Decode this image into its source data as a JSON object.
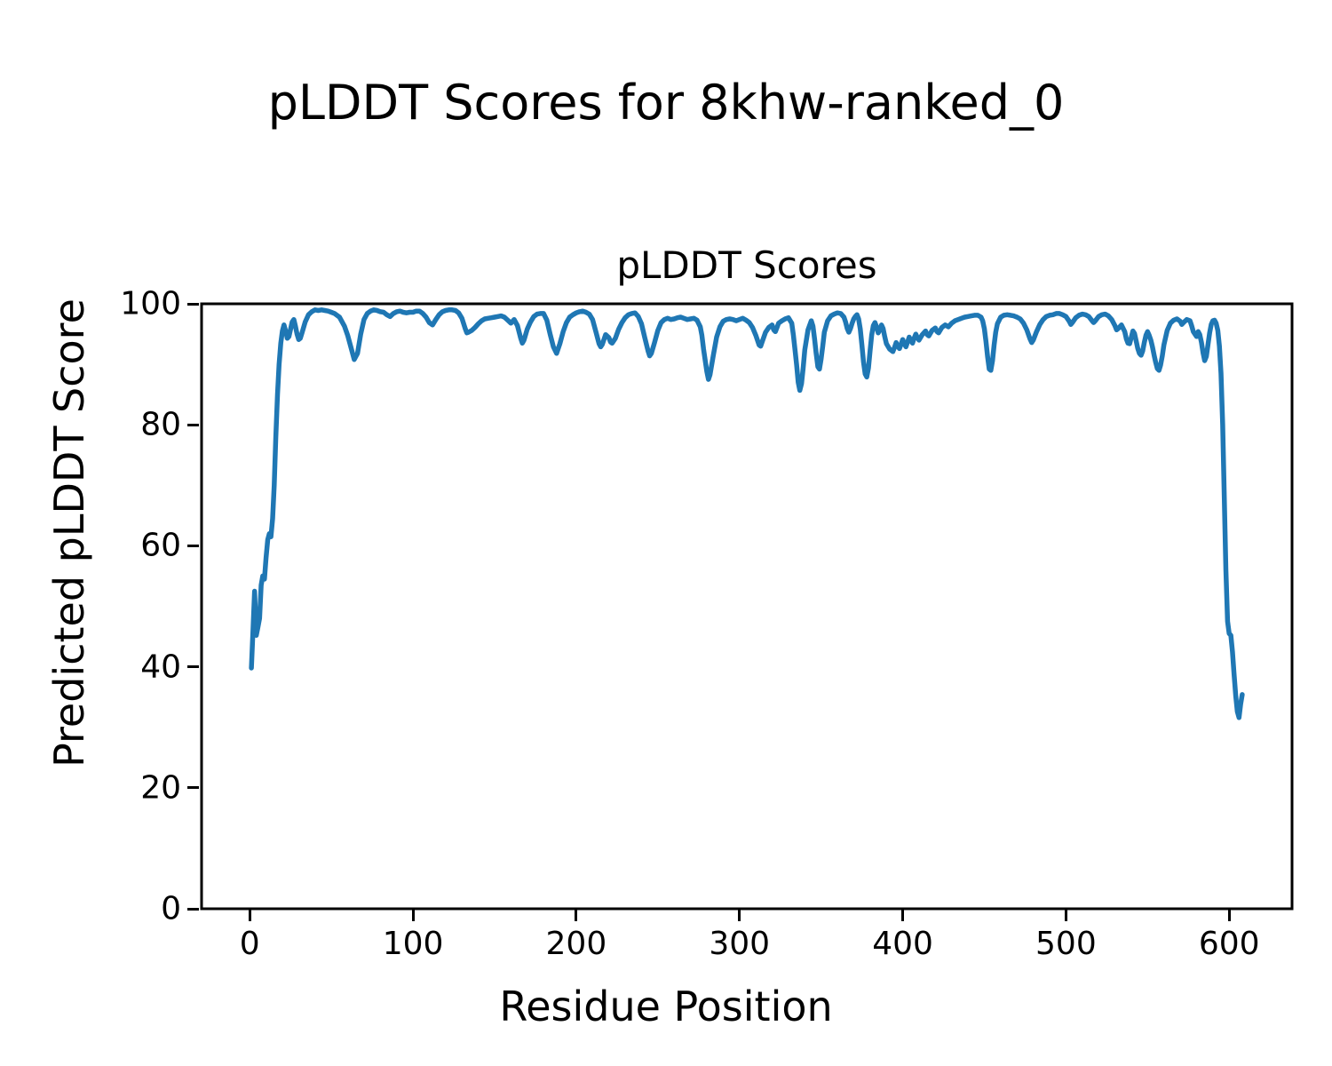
{
  "figure": {
    "background_color": "#ffffff",
    "text_color": "#000000"
  },
  "chart_data": {
    "type": "line",
    "suptitle": "pLDDT Scores for 8khw-ranked_0",
    "title": "pLDDT Scores",
    "xlabel": "Residue Position",
    "ylabel": "Predicted pLDDT Score",
    "line_color": "#1f77b4",
    "grid": false,
    "legend": null,
    "xlim": [
      -29.5,
      638.5
    ],
    "ylim": [
      0,
      100
    ],
    "xticks": [
      0,
      100,
      200,
      300,
      400,
      500,
      600
    ],
    "yticks": [
      0,
      20,
      40,
      60,
      80,
      100
    ],
    "series_name": "pLDDT score per residue",
    "points": [
      [
        1,
        39.8
      ],
      [
        2,
        46
      ],
      [
        3,
        52.5
      ],
      [
        4,
        45.2
      ],
      [
        5,
        46.5
      ],
      [
        6,
        48
      ],
      [
        7,
        53.5
      ],
      [
        8,
        55
      ],
      [
        9,
        54.5
      ],
      [
        10,
        58
      ],
      [
        11,
        61
      ],
      [
        12,
        62
      ],
      [
        13,
        61.5
      ],
      [
        14,
        64.5
      ],
      [
        15,
        70
      ],
      [
        16,
        78
      ],
      [
        17,
        85
      ],
      [
        18,
        90
      ],
      [
        19,
        93.5
      ],
      [
        20,
        95.5
      ],
      [
        21,
        96.5
      ],
      [
        22,
        95.5
      ],
      [
        23,
        94.3
      ],
      [
        24,
        94.6
      ],
      [
        25,
        95.8
      ],
      [
        26,
        97
      ],
      [
        27,
        97.4
      ],
      [
        28,
        96.3
      ],
      [
        29,
        95
      ],
      [
        30,
        94.1
      ],
      [
        31,
        94.3
      ],
      [
        32,
        95.2
      ],
      [
        34,
        97
      ],
      [
        36,
        98.2
      ],
      [
        38,
        98.7
      ],
      [
        40,
        99
      ],
      [
        42,
        98.9
      ],
      [
        44,
        99
      ],
      [
        46,
        98.9
      ],
      [
        48,
        98.8
      ],
      [
        50,
        98.6
      ],
      [
        52,
        98.4
      ],
      [
        55,
        97.8
      ],
      [
        58,
        96.3
      ],
      [
        60,
        94.8
      ],
      [
        62,
        92.8
      ],
      [
        64,
        90.8
      ],
      [
        66,
        91.8
      ],
      [
        68,
        95
      ],
      [
        70,
        97.4
      ],
      [
        72,
        98.4
      ],
      [
        74,
        98.8
      ],
      [
        76,
        99
      ],
      [
        78,
        98.9
      ],
      [
        80,
        98.7
      ],
      [
        82,
        98.6
      ],
      [
        84,
        98.2
      ],
      [
        86,
        97.9
      ],
      [
        88,
        98.4
      ],
      [
        90,
        98.7
      ],
      [
        92,
        98.8
      ],
      [
        94,
        98.6
      ],
      [
        96,
        98.5
      ],
      [
        98,
        98.6
      ],
      [
        100,
        98.6
      ],
      [
        102,
        98.8
      ],
      [
        104,
        98.8
      ],
      [
        106,
        98.4
      ],
      [
        108,
        97.8
      ],
      [
        110,
        96.9
      ],
      [
        112,
        96.5
      ],
      [
        114,
        97.4
      ],
      [
        116,
        98.2
      ],
      [
        118,
        98.7
      ],
      [
        120,
        98.9
      ],
      [
        122,
        99
      ],
      [
        124,
        99
      ],
      [
        126,
        98.9
      ],
      [
        128,
        98.5
      ],
      [
        130,
        97.6
      ],
      [
        132,
        95.9
      ],
      [
        133,
        95.2
      ],
      [
        134,
        95.3
      ],
      [
        136,
        95.6
      ],
      [
        138,
        96.1
      ],
      [
        140,
        96.7
      ],
      [
        142,
        97.2
      ],
      [
        144,
        97.5
      ],
      [
        146,
        97.6
      ],
      [
        148,
        97.7
      ],
      [
        150,
        97.8
      ],
      [
        152,
        97.9
      ],
      [
        154,
        98
      ],
      [
        156,
        97.8
      ],
      [
        158,
        97.3
      ],
      [
        160,
        96.8
      ],
      [
        162,
        97.4
      ],
      [
        164,
        96.4
      ],
      [
        166,
        94.3
      ],
      [
        167,
        93.5
      ],
      [
        168,
        94
      ],
      [
        170,
        95.8
      ],
      [
        172,
        97
      ],
      [
        174,
        97.9
      ],
      [
        176,
        98.3
      ],
      [
        178,
        98.4
      ],
      [
        180,
        98.4
      ],
      [
        182,
        97.3
      ],
      [
        184,
        95
      ],
      [
        186,
        92.9
      ],
      [
        188,
        91.8
      ],
      [
        190,
        93.4
      ],
      [
        192,
        95.4
      ],
      [
        194,
        96.9
      ],
      [
        196,
        97.8
      ],
      [
        198,
        98.2
      ],
      [
        200,
        98.5
      ],
      [
        202,
        98.7
      ],
      [
        204,
        98.8
      ],
      [
        206,
        98.6
      ],
      [
        208,
        98.3
      ],
      [
        210,
        97.4
      ],
      [
        212,
        95.4
      ],
      [
        214,
        93.4
      ],
      [
        215,
        92.9
      ],
      [
        216,
        93.3
      ],
      [
        218,
        94.9
      ],
      [
        220,
        94.4
      ],
      [
        221,
        93.7
      ],
      [
        222,
        93.5
      ],
      [
        224,
        94.3
      ],
      [
        226,
        95.8
      ],
      [
        228,
        96.9
      ],
      [
        230,
        97.7
      ],
      [
        232,
        98.2
      ],
      [
        234,
        98.4
      ],
      [
        236,
        98.5
      ],
      [
        238,
        97.9
      ],
      [
        240,
        96.7
      ],
      [
        242,
        94.4
      ],
      [
        244,
        92.2
      ],
      [
        245,
        91.4
      ],
      [
        246,
        91.8
      ],
      [
        248,
        93.6
      ],
      [
        250,
        95.6
      ],
      [
        252,
        96.9
      ],
      [
        254,
        97.4
      ],
      [
        256,
        97.6
      ],
      [
        258,
        97.4
      ],
      [
        260,
        97.5
      ],
      [
        262,
        97.7
      ],
      [
        264,
        97.8
      ],
      [
        266,
        97.6
      ],
      [
        268,
        97.4
      ],
      [
        270,
        97.5
      ],
      [
        272,
        97.6
      ],
      [
        274,
        97.3
      ],
      [
        276,
        96.2
      ],
      [
        277,
        94.8
      ],
      [
        278,
        92.5
      ],
      [
        280,
        88.8
      ],
      [
        281,
        87.5
      ],
      [
        282,
        88.3
      ],
      [
        284,
        91.5
      ],
      [
        286,
        94.5
      ],
      [
        288,
        96.2
      ],
      [
        290,
        97.1
      ],
      [
        292,
        97.4
      ],
      [
        294,
        97.5
      ],
      [
        296,
        97.4
      ],
      [
        298,
        97.2
      ],
      [
        300,
        97.4
      ],
      [
        302,
        97.6
      ],
      [
        304,
        97.3
      ],
      [
        306,
        96.9
      ],
      [
        308,
        96.1
      ],
      [
        310,
        94.8
      ],
      [
        312,
        93.2
      ],
      [
        313,
        93
      ],
      [
        314,
        93.8
      ],
      [
        316,
        95.3
      ],
      [
        318,
        96.1
      ],
      [
        320,
        96.5
      ],
      [
        321,
        95.7
      ],
      [
        322,
        95.4
      ],
      [
        323,
        96.1
      ],
      [
        324,
        96.8
      ],
      [
        326,
        97.2
      ],
      [
        328,
        97.5
      ],
      [
        330,
        97.7
      ],
      [
        332,
        96.8
      ],
      [
        333,
        94.9
      ],
      [
        334,
        92.5
      ],
      [
        335,
        89.9
      ],
      [
        336,
        87
      ],
      [
        337,
        85.7
      ],
      [
        338,
        86.8
      ],
      [
        339,
        89.3
      ],
      [
        340,
        92.4
      ],
      [
        342,
        95.7
      ],
      [
        344,
        97.2
      ],
      [
        345,
        96.3
      ],
      [
        346,
        94.2
      ],
      [
        347,
        91.8
      ],
      [
        348,
        89.6
      ],
      [
        349,
        89.2
      ],
      [
        350,
        90.8
      ],
      [
        351,
        93
      ],
      [
        352,
        95.3
      ],
      [
        354,
        97.2
      ],
      [
        356,
        98
      ],
      [
        358,
        98.3
      ],
      [
        360,
        98.5
      ],
      [
        362,
        98.4
      ],
      [
        364,
        97.8
      ],
      [
        365,
        97
      ],
      [
        366,
        95.9
      ],
      [
        367,
        95.3
      ],
      [
        368,
        95.9
      ],
      [
        369,
        96.8
      ],
      [
        370,
        97.5
      ],
      [
        371,
        97.9
      ],
      [
        372,
        98.2
      ],
      [
        373,
        97.5
      ],
      [
        374,
        95.8
      ],
      [
        375,
        93.2
      ],
      [
        376,
        90.4
      ],
      [
        377,
        88.4
      ],
      [
        378,
        87.9
      ],
      [
        379,
        89.4
      ],
      [
        380,
        92.2
      ],
      [
        381,
        94.8
      ],
      [
        382,
        96.4
      ],
      [
        383,
        96.9
      ],
      [
        384,
        96.2
      ],
      [
        385,
        95.2
      ],
      [
        386,
        95.7
      ],
      [
        387,
        96.5
      ],
      [
        388,
        95.9
      ],
      [
        389,
        94.6
      ],
      [
        390,
        93.4
      ],
      [
        392,
        92.5
      ],
      [
        394,
        92.1
      ],
      [
        395,
        92.8
      ],
      [
        396,
        93.6
      ],
      [
        397,
        93
      ],
      [
        398,
        92.6
      ],
      [
        399,
        93.3
      ],
      [
        400,
        94.1
      ],
      [
        401,
        93.4
      ],
      [
        402,
        92.9
      ],
      [
        403,
        93.7
      ],
      [
        404,
        94.5
      ],
      [
        405,
        93.9
      ],
      [
        406,
        93.5
      ],
      [
        407,
        94.3
      ],
      [
        408,
        95
      ],
      [
        409,
        94.4
      ],
      [
        410,
        94
      ],
      [
        412,
        94.9
      ],
      [
        414,
        95.5
      ],
      [
        415,
        94.9
      ],
      [
        416,
        94.7
      ],
      [
        418,
        95.6
      ],
      [
        420,
        96
      ],
      [
        421,
        95.4
      ],
      [
        422,
        95.2
      ],
      [
        424,
        96.1
      ],
      [
        426,
        96.5
      ],
      [
        428,
        96.2
      ],
      [
        430,
        96.8
      ],
      [
        432,
        97.2
      ],
      [
        434,
        97.4
      ],
      [
        436,
        97.6
      ],
      [
        438,
        97.8
      ],
      [
        440,
        97.9
      ],
      [
        442,
        98
      ],
      [
        444,
        98.1
      ],
      [
        446,
        98.1
      ],
      [
        448,
        97.8
      ],
      [
        449,
        97.2
      ],
      [
        450,
        95.9
      ],
      [
        451,
        93.8
      ],
      [
        452,
        91.2
      ],
      [
        453,
        89.2
      ],
      [
        454,
        89
      ],
      [
        455,
        90.6
      ],
      [
        456,
        93.2
      ],
      [
        457,
        95.3
      ],
      [
        458,
        96.7
      ],
      [
        460,
        97.8
      ],
      [
        462,
        98.1
      ],
      [
        464,
        98.2
      ],
      [
        466,
        98.1
      ],
      [
        468,
        98
      ],
      [
        470,
        97.8
      ],
      [
        472,
        97.5
      ],
      [
        474,
        96.8
      ],
      [
        476,
        95.7
      ],
      [
        478,
        94.2
      ],
      [
        479,
        93.6
      ],
      [
        480,
        94
      ],
      [
        482,
        95.4
      ],
      [
        484,
        96.6
      ],
      [
        486,
        97.4
      ],
      [
        488,
        97.9
      ],
      [
        490,
        98.1
      ],
      [
        492,
        98.2
      ],
      [
        494,
        98.4
      ],
      [
        496,
        98.4
      ],
      [
        498,
        98.2
      ],
      [
        500,
        97.9
      ],
      [
        502,
        97.1
      ],
      [
        503,
        96.6
      ],
      [
        504,
        96.9
      ],
      [
        506,
        97.7
      ],
      [
        508,
        98.1
      ],
      [
        510,
        98.3
      ],
      [
        512,
        98.2
      ],
      [
        514,
        97.9
      ],
      [
        516,
        97.2
      ],
      [
        517,
        96.9
      ],
      [
        518,
        97.2
      ],
      [
        520,
        97.9
      ],
      [
        522,
        98.2
      ],
      [
        524,
        98.3
      ],
      [
        526,
        98
      ],
      [
        528,
        97.4
      ],
      [
        530,
        96.4
      ],
      [
        531,
        95.7
      ],
      [
        532,
        95.9
      ],
      [
        534,
        96.5
      ],
      [
        536,
        95.4
      ],
      [
        537,
        94.2
      ],
      [
        538,
        93.5
      ],
      [
        539,
        93.4
      ],
      [
        540,
        94.4
      ],
      [
        541,
        95.5
      ],
      [
        542,
        95.1
      ],
      [
        543,
        93.9
      ],
      [
        544,
        92.6
      ],
      [
        545,
        91.8
      ],
      [
        546,
        91.5
      ],
      [
        547,
        92.2
      ],
      [
        548,
        93.6
      ],
      [
        549,
        94.8
      ],
      [
        550,
        95.4
      ],
      [
        551,
        94.8
      ],
      [
        552,
        94
      ],
      [
        553,
        92.9
      ],
      [
        554,
        91.5
      ],
      [
        555,
        90.3
      ],
      [
        556,
        89.3
      ],
      [
        557,
        89
      ],
      [
        558,
        89.9
      ],
      [
        559,
        91.4
      ],
      [
        560,
        93.2
      ],
      [
        562,
        95.6
      ],
      [
        564,
        96.8
      ],
      [
        566,
        97.3
      ],
      [
        568,
        97.5
      ],
      [
        570,
        97.1
      ],
      [
        571,
        96.6
      ],
      [
        572,
        96.9
      ],
      [
        574,
        97.4
      ],
      [
        576,
        97.2
      ],
      [
        577,
        96.4
      ],
      [
        578,
        95.4
      ],
      [
        580,
        94.6
      ],
      [
        581,
        95.4
      ],
      [
        582,
        94.9
      ],
      [
        583,
        93.6
      ],
      [
        584,
        91.9
      ],
      [
        585,
        90.6
      ],
      [
        586,
        91.3
      ],
      [
        587,
        93.2
      ],
      [
        588,
        95.2
      ],
      [
        589,
        96.6
      ],
      [
        590,
        97.2
      ],
      [
        591,
        97.3
      ],
      [
        592,
        96.8
      ],
      [
        593,
        95.6
      ],
      [
        594,
        93
      ],
      [
        595,
        88.5
      ],
      [
        596,
        80
      ],
      [
        597,
        68
      ],
      [
        598,
        56
      ],
      [
        599,
        47.5
      ],
      [
        600,
        45.5
      ],
      [
        601,
        45.2
      ],
      [
        602,
        42.5
      ],
      [
        603,
        38.8
      ],
      [
        604,
        35.2
      ],
      [
        605,
        32.6
      ],
      [
        606,
        31.6
      ],
      [
        607,
        33.8
      ],
      [
        608,
        35.4
      ]
    ]
  }
}
